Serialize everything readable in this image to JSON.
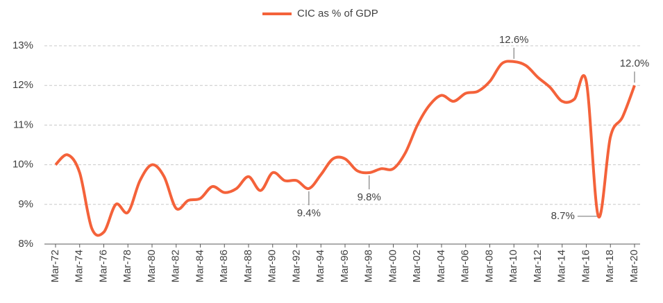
{
  "chart_data": {
    "type": "line",
    "categories": [
      "Mar-72",
      null,
      "Mar-74",
      null,
      "Mar-76",
      null,
      "Mar-78",
      null,
      "Mar-80",
      null,
      "Mar-82",
      null,
      "Mar-84",
      null,
      "Mar-86",
      null,
      "Mar-88",
      null,
      "Mar-90",
      null,
      "Mar-92",
      null,
      "Mar-94",
      null,
      "Mar-96",
      null,
      "Mar-98",
      null,
      "Mar-00",
      null,
      "Mar-02",
      null,
      "Mar-04",
      null,
      "Mar-06",
      null,
      "Mar-08",
      null,
      "Mar-10",
      null,
      "Mar-12",
      null,
      "Mar-14",
      null,
      "Mar-16",
      null,
      "Mar-18",
      null,
      "Mar-20"
    ],
    "series": [
      {
        "name": "CIC as % of GDP",
        "color": "#f4623a",
        "values": [
          10.0,
          10.25,
          9.8,
          8.4,
          8.3,
          9.0,
          8.8,
          9.6,
          10.0,
          9.7,
          8.9,
          9.1,
          9.15,
          9.45,
          9.3,
          9.4,
          9.7,
          9.35,
          9.8,
          9.6,
          9.6,
          9.4,
          9.75,
          10.15,
          10.15,
          9.85,
          9.8,
          9.9,
          9.9,
          10.3,
          11.0,
          11.5,
          11.75,
          11.6,
          11.8,
          11.85,
          12.1,
          12.55,
          12.6,
          12.5,
          12.2,
          11.95,
          11.6,
          11.65,
          12.1,
          8.7,
          10.7,
          11.2,
          12.0
        ],
        "value_labels": [
          null,
          null,
          null,
          null,
          null,
          null,
          null,
          null,
          null,
          null,
          null,
          null,
          null,
          null,
          null,
          null,
          null,
          null,
          null,
          null,
          null,
          "9.4%",
          null,
          null,
          null,
          null,
          "9.8%",
          null,
          null,
          null,
          null,
          null,
          null,
          null,
          null,
          null,
          null,
          null,
          "12.6%",
          null,
          null,
          null,
          null,
          null,
          null,
          "8.7%",
          null,
          null,
          "12.0%"
        ]
      }
    ],
    "ylim": [
      8,
      13
    ],
    "yticks": [
      {
        "value": 8,
        "label": "8%"
      },
      {
        "value": 9,
        "label": "9%"
      },
      {
        "value": 10,
        "label": "10%"
      },
      {
        "value": 11,
        "label": "11%"
      },
      {
        "value": 12,
        "label": "12%"
      },
      {
        "value": 13,
        "label": "13%"
      }
    ],
    "grid": true,
    "legend": "top"
  }
}
